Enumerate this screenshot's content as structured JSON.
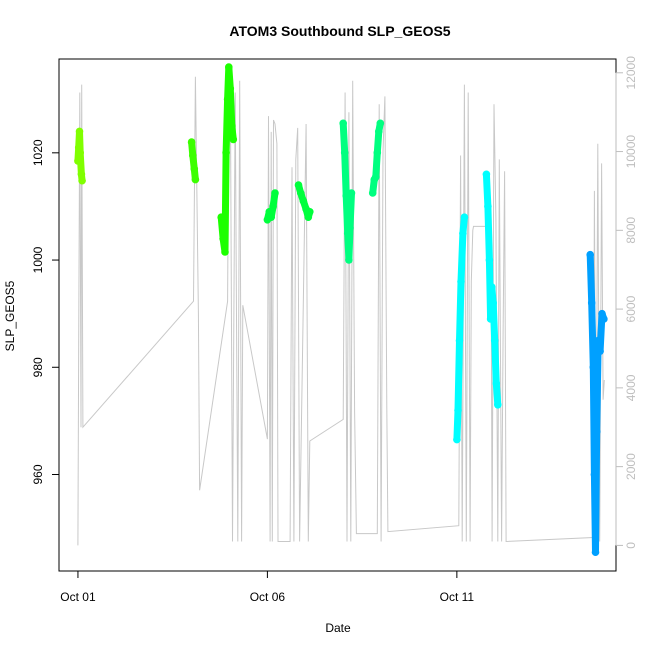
{
  "chart_data": {
    "type": "line",
    "title": "ATOM3 Southbound SLP_GEOS5",
    "xlabel": "Date",
    "ylabel": "SLP_GEOS5",
    "x_ticks": [
      "Oct 01",
      "Oct 06",
      "Oct 11"
    ],
    "x_tick_values": [
      0,
      5,
      10
    ],
    "xlim": [
      -0.5,
      14.2
    ],
    "ylim": [
      942.0,
      1037.5
    ],
    "y_ticks": [
      960,
      980,
      1000,
      1020
    ],
    "y2lim": [
      -650,
      12350
    ],
    "y2_ticks": [
      0,
      2000,
      4000,
      6000,
      8000,
      10000,
      12000
    ],
    "y2_color": "#bebebe",
    "grid": false,
    "legend": "none",
    "series": [
      {
        "role": "altitude",
        "color": "#c8c8c8",
        "points": [
          [
            0.0,
            0
          ],
          [
            0.02,
            5200
          ],
          [
            0.05,
            11500
          ],
          [
            0.08,
            3000
          ],
          [
            0.1,
            11700
          ],
          [
            0.13,
            3000
          ],
          [
            3.05,
            6200
          ],
          [
            3.1,
            11900
          ],
          [
            3.18,
            5900
          ],
          [
            3.21,
            1400
          ],
          [
            3.95,
            6200
          ],
          [
            3.98,
            11400
          ],
          [
            4.02,
            12000
          ],
          [
            4.08,
            100
          ],
          [
            4.15,
            11500
          ],
          [
            4.22,
            100
          ],
          [
            4.27,
            11800
          ],
          [
            4.32,
            100
          ],
          [
            4.35,
            6100
          ],
          [
            5.0,
            2700
          ],
          [
            5.03,
            10900
          ],
          [
            5.07,
            100
          ],
          [
            5.1,
            10500
          ],
          [
            5.13,
            100
          ],
          [
            5.16,
            10800
          ],
          [
            5.2,
            10700
          ],
          [
            5.25,
            10200
          ],
          [
            5.28,
            100
          ],
          [
            5.6,
            100
          ],
          [
            5.65,
            9600
          ],
          [
            5.7,
            100
          ],
          [
            5.75,
            9800
          ],
          [
            5.8,
            10600
          ],
          [
            5.85,
            100
          ],
          [
            6.02,
            10700
          ],
          [
            6.08,
            100
          ],
          [
            6.12,
            2650
          ],
          [
            7.0,
            3200
          ],
          [
            7.05,
            11500
          ],
          [
            7.1,
            100
          ],
          [
            7.15,
            11000
          ],
          [
            7.2,
            100
          ],
          [
            7.25,
            11800
          ],
          [
            7.3,
            3400
          ],
          [
            7.35,
            300
          ],
          [
            7.9,
            300
          ],
          [
            7.95,
            11200
          ],
          [
            8.0,
            100
          ],
          [
            8.05,
            10000
          ],
          [
            8.1,
            11400
          ],
          [
            8.15,
            3500
          ],
          [
            8.18,
            350
          ],
          [
            10.05,
            500
          ],
          [
            10.1,
            9900
          ],
          [
            10.14,
            100
          ],
          [
            10.2,
            11700
          ],
          [
            10.25,
            100
          ],
          [
            10.3,
            11500
          ],
          [
            10.35,
            100
          ],
          [
            10.38,
            6700
          ],
          [
            10.42,
            8000
          ],
          [
            10.44,
            8100
          ],
          [
            10.9,
            8100
          ],
          [
            10.93,
            100
          ],
          [
            10.98,
            11200
          ],
          [
            11.03,
            8300
          ],
          [
            11.08,
            100
          ],
          [
            11.12,
            9800
          ],
          [
            11.18,
            100
          ],
          [
            11.22,
            5400
          ],
          [
            11.26,
            9500
          ],
          [
            11.3,
            100
          ],
          [
            13.6,
            200
          ],
          [
            13.63,
            9000
          ],
          [
            13.67,
            100
          ],
          [
            13.72,
            10200
          ],
          [
            13.77,
            100
          ],
          [
            13.82,
            9700
          ],
          [
            13.86,
            3700
          ],
          [
            13.89,
            4200
          ]
        ]
      },
      {
        "role": "slp",
        "points": [
          [
            0.0,
            1018.5,
            "#80ff00"
          ],
          [
            0.02,
            1021.0,
            "#80ff00"
          ],
          [
            0.04,
            1024.0,
            "#80ff00"
          ],
          [
            0.06,
            1020.0,
            "#80ff00"
          ],
          [
            0.09,
            1016.0,
            "#80ff00"
          ],
          [
            0.11,
            1014.8,
            "#80ff00"
          ],
          [
            3.0,
            1022.0,
            "#3cff00"
          ],
          [
            3.03,
            1019.5,
            "#3cff00"
          ],
          [
            3.07,
            1017.0,
            "#3cff00"
          ],
          [
            3.1,
            1015.0,
            "#3cff00"
          ],
          [
            3.78,
            1008.0,
            "#1dff00"
          ],
          [
            3.83,
            1004.0,
            "#1dff00"
          ],
          [
            3.88,
            1001.5,
            "#1dff00"
          ],
          [
            3.91,
            1020.0,
            "#1dff00"
          ],
          [
            3.95,
            1030.0,
            "#1dff00"
          ],
          [
            3.98,
            1036.0,
            "#1dff00"
          ],
          [
            4.02,
            1032.0,
            "#1dff00"
          ],
          [
            4.06,
            1025.0,
            "#1dff00"
          ],
          [
            4.1,
            1022.5,
            "#1dff00"
          ],
          [
            5.0,
            1007.5,
            "#00ff3c"
          ],
          [
            5.05,
            1009.0,
            "#00ff3c"
          ],
          [
            5.1,
            1008.0,
            "#00ff3c"
          ],
          [
            5.15,
            1010.0,
            "#00ff3c"
          ],
          [
            5.2,
            1012.5,
            "#00ff3c"
          ],
          [
            5.82,
            1014.0,
            "#00ff3c"
          ],
          [
            5.88,
            1012.5,
            "#00ff3c"
          ],
          [
            5.95,
            1011.0,
            "#00ff3c"
          ],
          [
            6.02,
            1009.5,
            "#00ff3c"
          ],
          [
            6.08,
            1008.0,
            "#00ff3c"
          ],
          [
            6.12,
            1009.0,
            "#00ff3c"
          ],
          [
            7.0,
            1025.5,
            "#00ff80"
          ],
          [
            7.04,
            1020.0,
            "#00ff80"
          ],
          [
            7.08,
            1012.0,
            "#00ff80"
          ],
          [
            7.12,
            1005.0,
            "#00ff80"
          ],
          [
            7.15,
            1000.0,
            "#00ff80"
          ],
          [
            7.18,
            1006.0,
            "#00ff80"
          ],
          [
            7.22,
            1012.5,
            "#00ff80"
          ],
          [
            7.78,
            1012.5,
            "#00ff80"
          ],
          [
            7.82,
            1015.0,
            "#00ff80"
          ],
          [
            7.86,
            1015.5,
            "#00ff80"
          ],
          [
            7.9,
            1020.0,
            "#00ff80"
          ],
          [
            7.94,
            1024.0,
            "#00ff80"
          ],
          [
            7.98,
            1025.5,
            "#00ff80"
          ],
          [
            10.0,
            966.5,
            "#00ffff"
          ],
          [
            10.03,
            972.0,
            "#00ffff"
          ],
          [
            10.07,
            985.0,
            "#00ffff"
          ],
          [
            10.11,
            996.0,
            "#00ffff"
          ],
          [
            10.16,
            1005.0,
            "#00ffff"
          ],
          [
            10.2,
            1008.0,
            "#00ffff"
          ],
          [
            10.78,
            1016.0,
            "#00ffff"
          ],
          [
            10.82,
            1010.0,
            "#00ffff"
          ],
          [
            10.86,
            1000.0,
            "#00ffff"
          ],
          [
            10.89,
            989.0,
            "#00ffff"
          ],
          [
            10.92,
            995.0,
            "#00ffff"
          ],
          [
            10.96,
            992.0,
            "#00ffff"
          ],
          [
            11.0,
            985.0,
            "#00ffff"
          ],
          [
            11.04,
            977.0,
            "#00ffff"
          ],
          [
            11.08,
            973.0,
            "#00ffff"
          ],
          [
            13.52,
            1001.0,
            "#00a0ff"
          ],
          [
            13.56,
            992.0,
            "#00a0ff"
          ],
          [
            13.6,
            980.0,
            "#00a0ff"
          ],
          [
            13.63,
            960.0,
            "#00a0ff"
          ],
          [
            13.66,
            945.5,
            "#00a0ff"
          ],
          [
            13.69,
            968.0,
            "#00a0ff"
          ],
          [
            13.73,
            985.0,
            "#00a0ff"
          ],
          [
            13.78,
            983.0,
            "#00a0ff"
          ],
          [
            13.83,
            990.0,
            "#00a0ff"
          ],
          [
            13.88,
            989.0,
            "#00a0ff"
          ]
        ]
      }
    ]
  }
}
